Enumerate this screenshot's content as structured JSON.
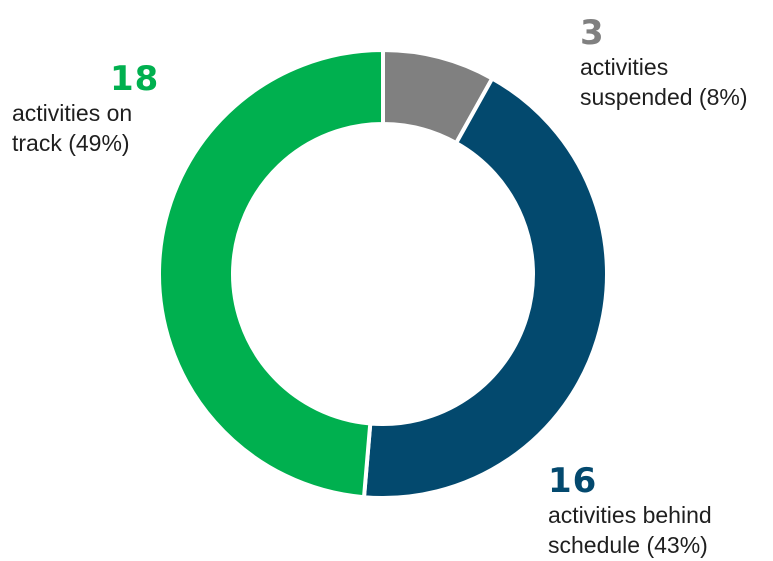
{
  "chart_data": {
    "type": "pie",
    "variant": "donut",
    "title": "",
    "slices": [
      {
        "label": "activities suspended (8%)",
        "count": "3",
        "value": 3,
        "percent": 8,
        "color": "#808080",
        "desc": "activities\nsuspended (8%)"
      },
      {
        "label": "activities behind schedule (43%)",
        "count": "16",
        "value": 16,
        "percent": 43,
        "color": "#03496E",
        "desc": "activities behind\nschedule (43%)"
      },
      {
        "label": "activities on track (49%)",
        "count": "18",
        "value": 18,
        "percent": 49,
        "color": "#00B04F",
        "desc": "activities on\ntrack (49%)"
      }
    ],
    "start_angle": "12 o'clock",
    "direction": "clockwise",
    "legend": "none"
  }
}
